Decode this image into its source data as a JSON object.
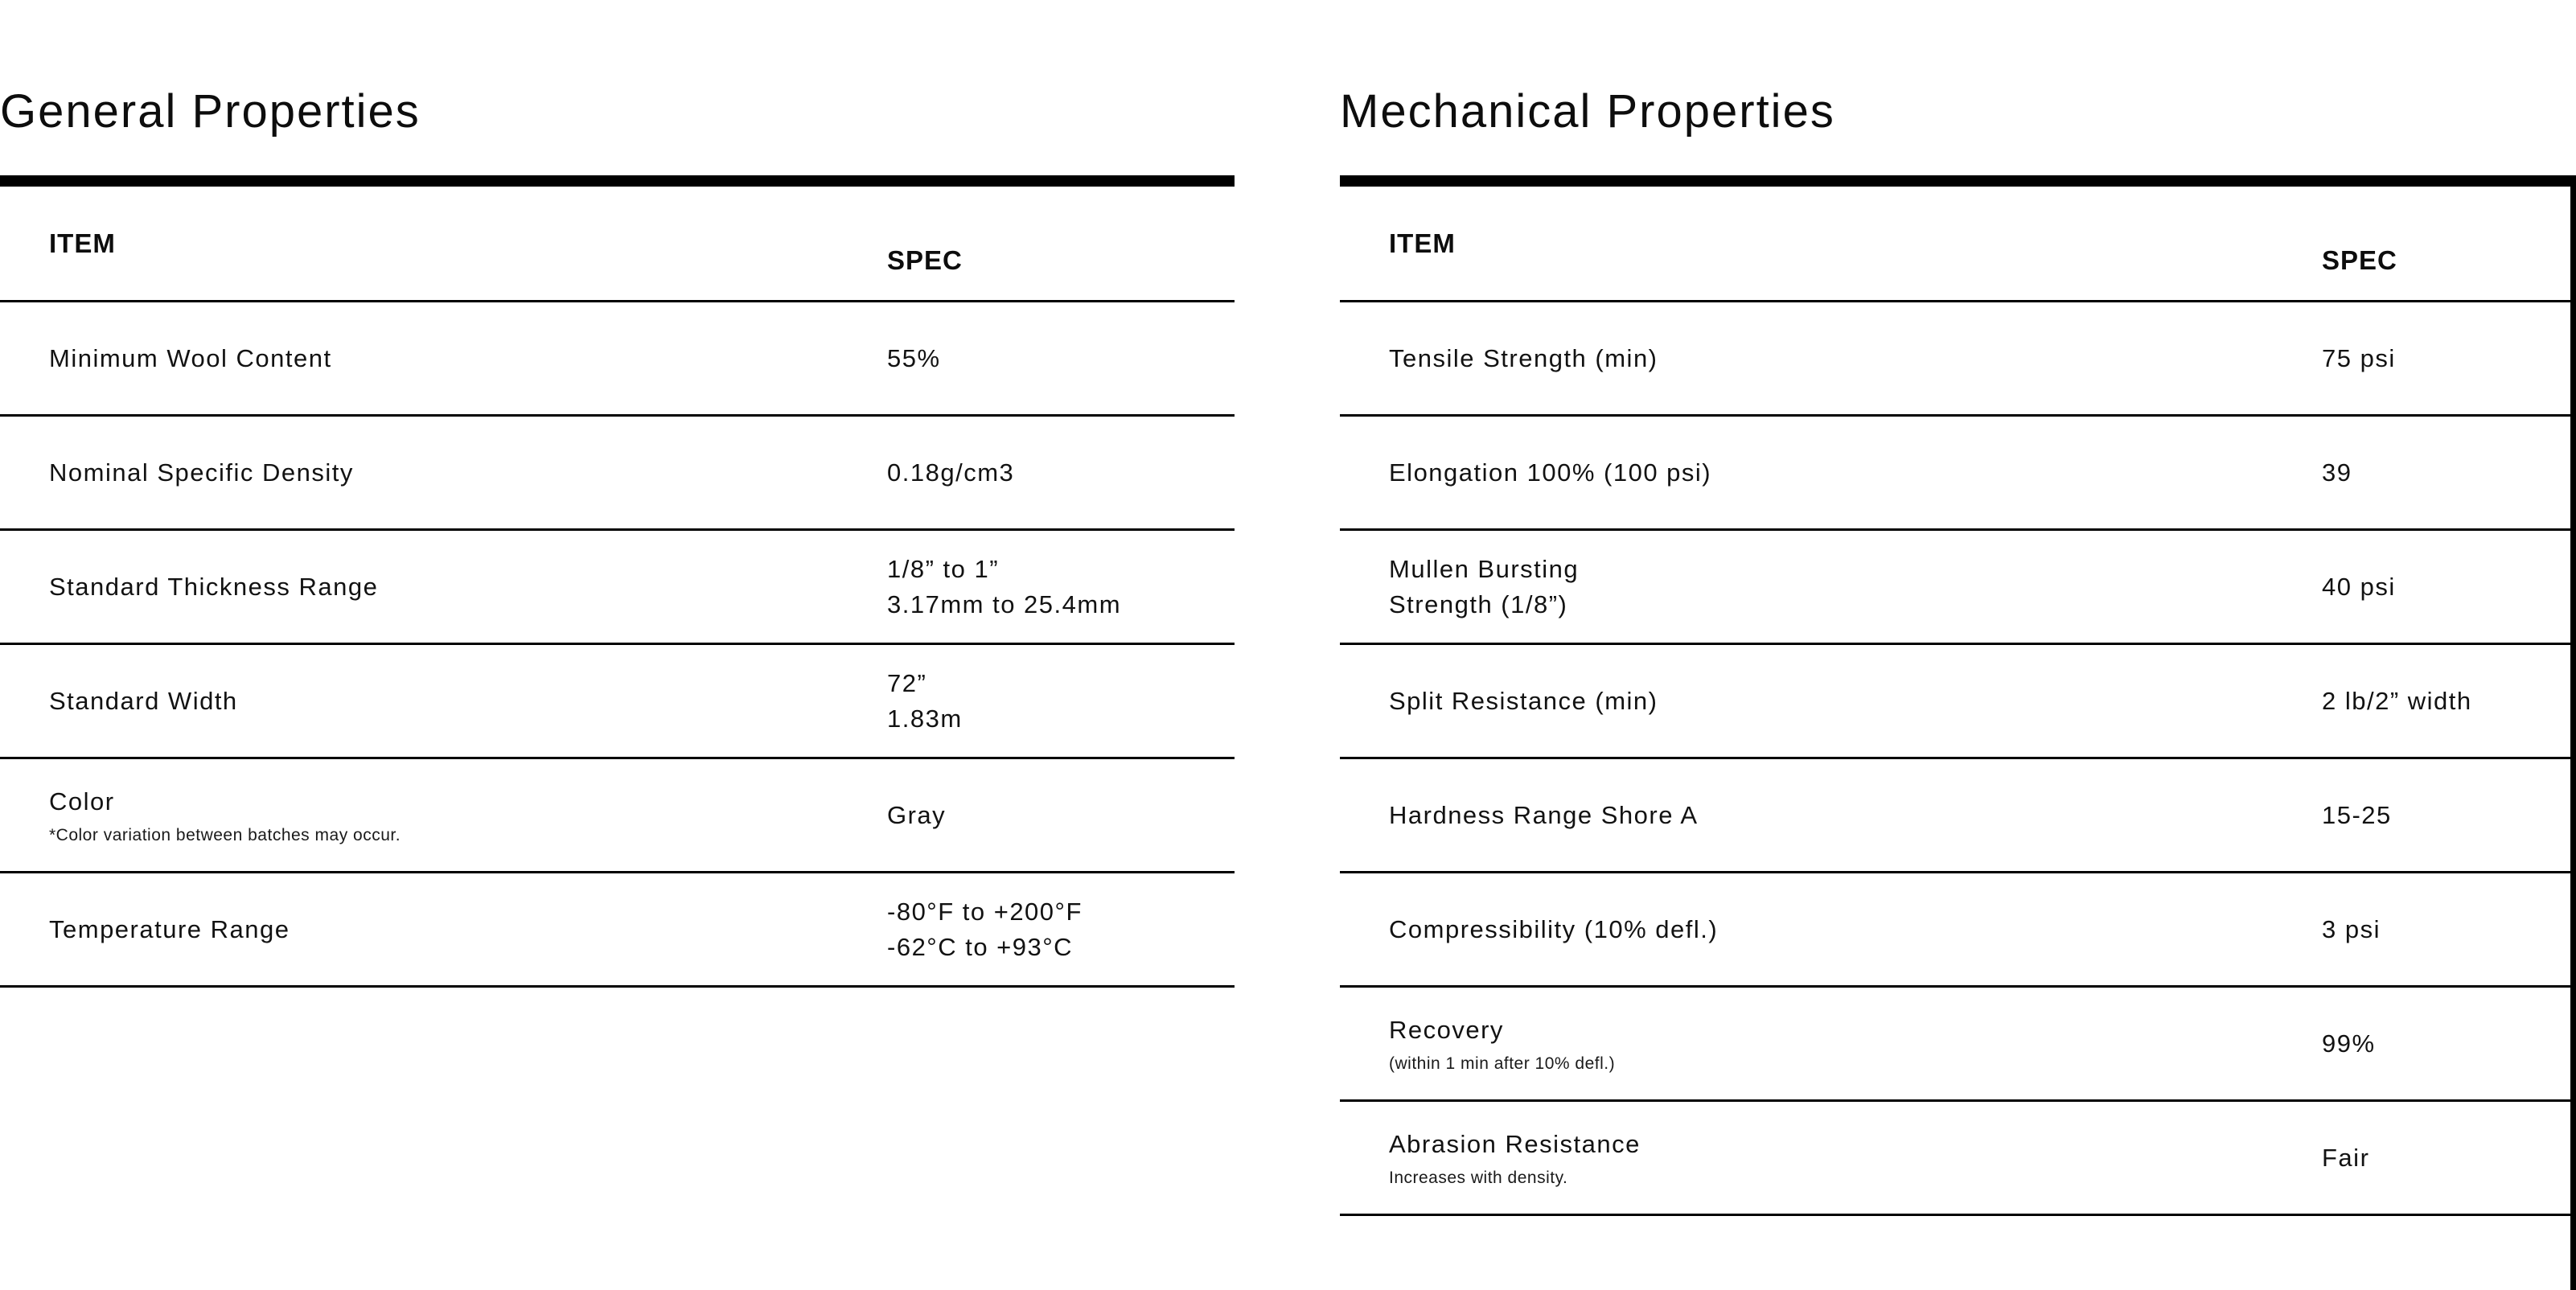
{
  "page": {
    "background": "#ffffff",
    "rule_color": "#000000",
    "text_color": "#121212"
  },
  "general": {
    "title": "General Properties",
    "columns": {
      "item": "ITEM",
      "spec": "SPEC"
    },
    "rows": [
      {
        "item": "Minimum Wool Content",
        "spec": "55%"
      },
      {
        "item": "Nominal Specific Density",
        "spec": "0.18g/cm3"
      },
      {
        "item": "Standard Thickness Range",
        "spec": "1/8” to 1”\n3.17mm to 25.4mm"
      },
      {
        "item": "Standard Width",
        "spec": "72”\n1.83m"
      },
      {
        "item": "Color",
        "note": "*Color variation between batches may occur.",
        "spec": "Gray"
      },
      {
        "item": "Temperature Range",
        "spec": "-80°F to +200°F\n-62°C to +93°C"
      }
    ]
  },
  "mechanical": {
    "title": "Mechanical Properties",
    "columns": {
      "item": "ITEM",
      "spec": "SPEC"
    },
    "rows": [
      {
        "item": "Tensile Strength (min)",
        "spec": "75 psi"
      },
      {
        "item": "Elongation 100% (100 psi)",
        "spec": "39"
      },
      {
        "item": "Mullen Bursting\nStrength (1/8”)",
        "spec": "40 psi"
      },
      {
        "item": "Split Resistance (min)",
        "spec": "2 lb/2” width"
      },
      {
        "item": "Hardness Range Shore A",
        "spec": "15-25"
      },
      {
        "item": "Compressibility (10% defl.)",
        "spec": "3 psi"
      },
      {
        "item": "Recovery",
        "note": "(within 1 min after 10% defl.)",
        "spec": "99%"
      },
      {
        "item": "Abrasion Resistance",
        "note": "Increases with density.",
        "spec": "Fair"
      }
    ]
  }
}
